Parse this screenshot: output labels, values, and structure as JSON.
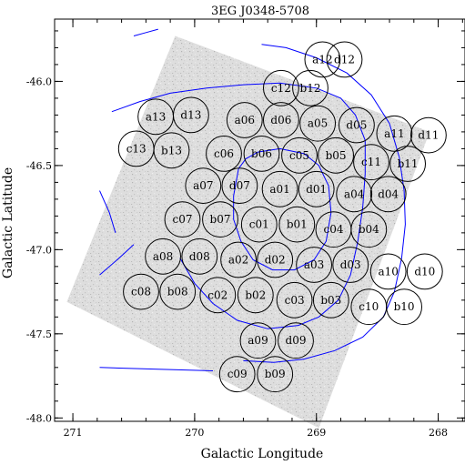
{
  "chart_data": {
    "type": "scatter",
    "title": "3EG J0348-5708",
    "xlabel": "Galactic Longitude",
    "ylabel": "Galactic Latitude",
    "xlim": [
      271.15,
      267.78
    ],
    "ylim": [
      -48.02,
      -45.63
    ],
    "x_ticks": [
      271,
      270,
      269,
      268
    ],
    "x_tick_labels": [
      "271",
      "270",
      "269",
      "268"
    ],
    "y_ticks": [
      -46.0,
      -46.5,
      -47.0,
      -47.5,
      -48.0
    ],
    "y_tick_labels": [
      "-46.0",
      "-46.5",
      "-47.0",
      "-47.5",
      "-48.0"
    ],
    "x_minor_step": 0.2,
    "y_minor_step": 0.1,
    "grid": false,
    "field_radius_deg": 0.145,
    "image_field_corners": [
      [
        270.16,
        -45.73
      ],
      [
        268.07,
        -46.3
      ],
      [
        268.98,
        -48.06
      ],
      [
        271.05,
        -47.31
      ]
    ],
    "fields": [
      {
        "label": "a12",
        "x": 268.95,
        "y": -45.87
      },
      {
        "label": "d12",
        "x": 268.77,
        "y": -45.87
      },
      {
        "label": "c12",
        "x": 269.29,
        "y": -46.04
      },
      {
        "label": "b12",
        "x": 269.05,
        "y": -46.04
      },
      {
        "label": "a13",
        "x": 270.32,
        "y": -46.21
      },
      {
        "label": "d13",
        "x": 270.03,
        "y": -46.2
      },
      {
        "label": "a06",
        "x": 269.59,
        "y": -46.23
      },
      {
        "label": "d06",
        "x": 269.29,
        "y": -46.23
      },
      {
        "label": "a05",
        "x": 268.99,
        "y": -46.25
      },
      {
        "label": "d05",
        "x": 268.67,
        "y": -46.26
      },
      {
        "label": "a11",
        "x": 268.36,
        "y": -46.31
      },
      {
        "label": "d11",
        "x": 268.08,
        "y": -46.32
      },
      {
        "label": "c13",
        "x": 270.48,
        "y": -46.4
      },
      {
        "label": "b13",
        "x": 270.19,
        "y": -46.41
      },
      {
        "label": "c06",
        "x": 269.76,
        "y": -46.43
      },
      {
        "label": "b06",
        "x": 269.45,
        "y": -46.43
      },
      {
        "label": "c05",
        "x": 269.14,
        "y": -46.44
      },
      {
        "label": "b05",
        "x": 268.84,
        "y": -46.44
      },
      {
        "label": "c11",
        "x": 268.55,
        "y": -46.48
      },
      {
        "label": "b11",
        "x": 268.25,
        "y": -46.49
      },
      {
        "label": "a07",
        "x": 269.93,
        "y": -46.62
      },
      {
        "label": "d07",
        "x": 269.63,
        "y": -46.62
      },
      {
        "label": "a01",
        "x": 269.3,
        "y": -46.64
      },
      {
        "label": "d01",
        "x": 269.0,
        "y": -46.64
      },
      {
        "label": "a04",
        "x": 268.69,
        "y": -46.67
      },
      {
        "label": "d04",
        "x": 268.41,
        "y": -46.67
      },
      {
        "label": "c07",
        "x": 270.1,
        "y": -46.82
      },
      {
        "label": "b07",
        "x": 269.79,
        "y": -46.82
      },
      {
        "label": "c01",
        "x": 269.47,
        "y": -46.85
      },
      {
        "label": "b01",
        "x": 269.16,
        "y": -46.85
      },
      {
        "label": "c04",
        "x": 268.86,
        "y": -46.88
      },
      {
        "label": "b04",
        "x": 268.57,
        "y": -46.88
      },
      {
        "label": "a08",
        "x": 270.26,
        "y": -47.04
      },
      {
        "label": "d08",
        "x": 269.96,
        "y": -47.04
      },
      {
        "label": "a02",
        "x": 269.64,
        "y": -47.06
      },
      {
        "label": "d02",
        "x": 269.34,
        "y": -47.06
      },
      {
        "label": "a03",
        "x": 269.02,
        "y": -47.09
      },
      {
        "label": "d03",
        "x": 268.72,
        "y": -47.09
      },
      {
        "label": "a10",
        "x": 268.41,
        "y": -47.13
      },
      {
        "label": "d10",
        "x": 268.11,
        "y": -47.13
      },
      {
        "label": "c08",
        "x": 270.44,
        "y": -47.25
      },
      {
        "label": "b08",
        "x": 270.14,
        "y": -47.25
      },
      {
        "label": "c02",
        "x": 269.81,
        "y": -47.27
      },
      {
        "label": "b02",
        "x": 269.5,
        "y": -47.27
      },
      {
        "label": "c03",
        "x": 269.18,
        "y": -47.3
      },
      {
        "label": "b03",
        "x": 268.88,
        "y": -47.3
      },
      {
        "label": "c10",
        "x": 268.57,
        "y": -47.34
      },
      {
        "label": "b10",
        "x": 268.28,
        "y": -47.34
      },
      {
        "label": "a09",
        "x": 269.48,
        "y": -47.54
      },
      {
        "label": "d09",
        "x": 269.17,
        "y": -47.54
      },
      {
        "label": "c09",
        "x": 269.65,
        "y": -47.74
      },
      {
        "label": "b09",
        "x": 269.34,
        "y": -47.74
      }
    ],
    "contours": [
      {
        "name": "",
        "color": "#0000ff",
        "points": [
          [
            270.68,
            -46.18
          ],
          [
            270.45,
            -46.12
          ],
          [
            270.2,
            -46.07
          ],
          [
            269.9,
            -46.04
          ],
          [
            269.6,
            -46.02
          ],
          [
            269.3,
            -46.01
          ],
          [
            269.0,
            -46.04
          ],
          [
            268.8,
            -46.1
          ],
          [
            268.68,
            -46.2
          ],
          [
            268.6,
            -46.35
          ],
          [
            268.6,
            -46.55
          ],
          [
            268.62,
            -46.75
          ],
          [
            268.66,
            -46.95
          ],
          [
            268.72,
            -47.15
          ],
          [
            268.82,
            -47.3
          ],
          [
            268.98,
            -47.4
          ],
          [
            269.15,
            -47.45
          ],
          [
            269.4,
            -47.47
          ],
          [
            269.65,
            -47.42
          ],
          [
            269.85,
            -47.32
          ],
          [
            270.0,
            -47.2
          ],
          [
            270.12,
            -47.05
          ]
        ]
      },
      {
        "name": "",
        "color": "#0000ff",
        "points": [
          [
            269.64,
            -46.52
          ],
          [
            269.58,
            -46.46
          ],
          [
            269.48,
            -46.42
          ],
          [
            269.3,
            -46.4
          ],
          [
            269.1,
            -46.43
          ],
          [
            268.98,
            -46.5
          ],
          [
            268.9,
            -46.62
          ],
          [
            268.88,
            -46.78
          ],
          [
            268.92,
            -46.95
          ],
          [
            269.02,
            -47.06
          ],
          [
            269.18,
            -47.12
          ],
          [
            269.36,
            -47.12
          ],
          [
            269.52,
            -47.06
          ],
          [
            269.62,
            -46.95
          ],
          [
            269.68,
            -46.82
          ],
          [
            269.68,
            -46.68
          ],
          [
            269.64,
            -46.52
          ]
        ]
      },
      {
        "name": "",
        "color": "#0000ff",
        "points": [
          [
            269.45,
            -45.78
          ],
          [
            269.25,
            -45.8
          ],
          [
            269.0,
            -45.86
          ],
          [
            268.75,
            -45.95
          ],
          [
            268.55,
            -46.08
          ],
          [
            268.4,
            -46.25
          ],
          [
            268.32,
            -46.45
          ],
          [
            268.28,
            -46.65
          ],
          [
            268.27,
            -46.85
          ],
          [
            268.3,
            -47.05
          ],
          [
            268.36,
            -47.25
          ],
          [
            268.45,
            -47.4
          ],
          [
            268.62,
            -47.52
          ],
          [
            268.85,
            -47.6
          ],
          [
            269.1,
            -47.65
          ],
          [
            269.35,
            -47.67
          ],
          [
            269.6,
            -47.66
          ]
        ]
      },
      {
        "name": "",
        "color": "#0000ff",
        "points": [
          [
            270.78,
            -46.65
          ],
          [
            270.7,
            -46.78
          ],
          [
            270.65,
            -46.9
          ]
        ]
      },
      {
        "name": "",
        "color": "#0000ff",
        "points": [
          [
            270.78,
            -47.15
          ],
          [
            270.62,
            -47.05
          ],
          [
            270.5,
            -46.97
          ]
        ]
      },
      {
        "name": "",
        "color": "#0000ff",
        "points": [
          [
            270.5,
            -45.73
          ],
          [
            270.4,
            -45.71
          ],
          [
            270.3,
            -45.69
          ]
        ]
      },
      {
        "name": "",
        "color": "#0000ff",
        "points": [
          [
            270.78,
            -47.7
          ],
          [
            270.3,
            -47.71
          ],
          [
            269.85,
            -47.72
          ]
        ]
      }
    ]
  }
}
